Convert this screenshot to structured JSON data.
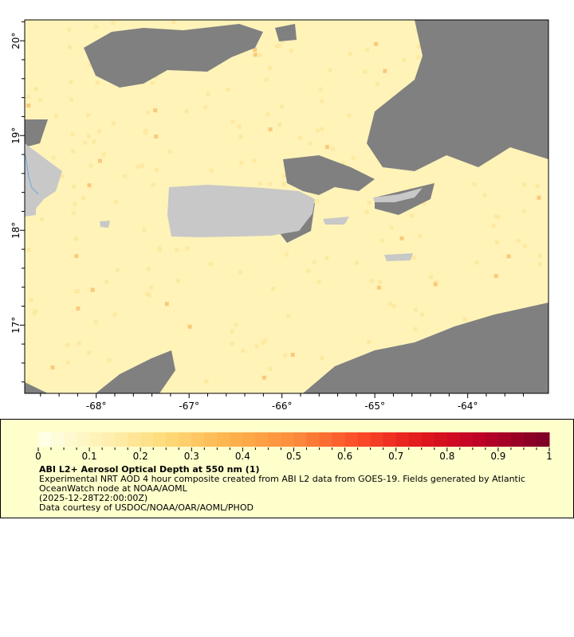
{
  "map": {
    "lon_range": [
      -68.77,
      -63.13
    ],
    "lat_range": [
      16.28,
      20.22
    ],
    "lon_ticks": [
      {
        "value": -68,
        "label": "-68°"
      },
      {
        "value": -67,
        "label": "-67°"
      },
      {
        "value": -66,
        "label": "-66°"
      },
      {
        "value": -65,
        "label": "-65°"
      },
      {
        "value": -64,
        "label": "-64°"
      }
    ],
    "lat_ticks": [
      {
        "value": 20,
        "label": "20°"
      },
      {
        "value": 19,
        "label": "19°"
      },
      {
        "value": 18,
        "label": "18°"
      },
      {
        "value": 17,
        "label": "17°"
      }
    ],
    "colors": {
      "background": "#fff3b8",
      "cloud": "#808080",
      "land": "#c8c8c8",
      "river": "#6fa8dc"
    }
  },
  "legend": {
    "range": [
      0,
      1
    ],
    "tick_labels": [
      "0",
      "0.1",
      "0.2",
      "0.3",
      "0.4",
      "0.5",
      "0.6",
      "0.7",
      "0.8",
      "0.9",
      "1"
    ],
    "title": "ABI L2+ Aerosol Optical Depth at 550 nm (1)",
    "description_line1": "Experimental NRT AOD 4 hour composite created from ABI L2 data from GOES-19. Fields generated by Atlantic",
    "description_line2": "OceanWatch node at NOAA/AOML",
    "time": "(2025-12-28T22:00:00Z)",
    "credit": "Data courtesy of USDOC/NOAA/OAR/AOML/PHOD",
    "colormap_stops": [
      "#ffffe6",
      "#fff0b0",
      "#fed976",
      "#feb24c",
      "#fd8d3c",
      "#fc4e2a",
      "#e31a1c",
      "#bd0026",
      "#800026"
    ]
  }
}
